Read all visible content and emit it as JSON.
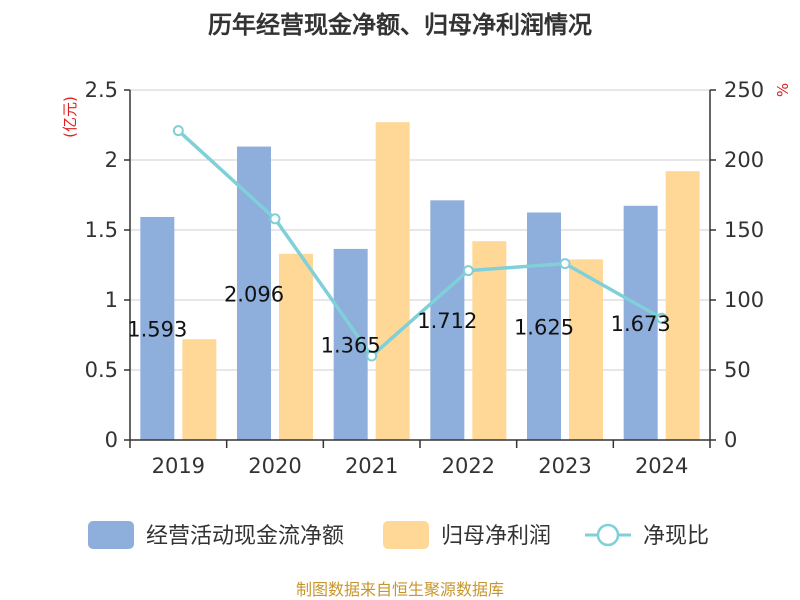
{
  "chart_data": {
    "type": "bar",
    "title": "历年经营现金净额、归母净利润情况",
    "left_axis_unit": "(亿元)",
    "right_axis_unit": "%",
    "categories": [
      "2019",
      "2020",
      "2021",
      "2022",
      "2023",
      "2024"
    ],
    "left_ylim": [
      0,
      2.5
    ],
    "left_ticks": [
      "0",
      "0.5",
      "1",
      "1.5",
      "2",
      "2.5"
    ],
    "right_ylim": [
      0,
      250
    ],
    "right_ticks": [
      "0",
      "50",
      "100",
      "150",
      "200",
      "250"
    ],
    "grid": true,
    "legend_position": "bottom",
    "series": [
      {
        "name": "经营活动现金流净额",
        "type": "bar",
        "axis": "left",
        "color": "#8eaedb",
        "values": [
          1.593,
          2.096,
          1.365,
          1.712,
          1.625,
          1.673
        ],
        "labels": [
          "1.593",
          "2.096",
          "1.365",
          "1.712",
          "1.625",
          "1.673"
        ]
      },
      {
        "name": "归母净利润",
        "type": "bar",
        "axis": "left",
        "color": "#ffd898",
        "values": [
          0.72,
          1.33,
          2.27,
          1.42,
          1.29,
          1.92
        ]
      },
      {
        "name": "净现比",
        "type": "line",
        "axis": "right",
        "color": "#7fd0d8",
        "values": [
          221,
          158,
          60,
          121,
          126,
          87
        ]
      }
    ],
    "source": "制图数据来自恒生聚源数据库"
  }
}
